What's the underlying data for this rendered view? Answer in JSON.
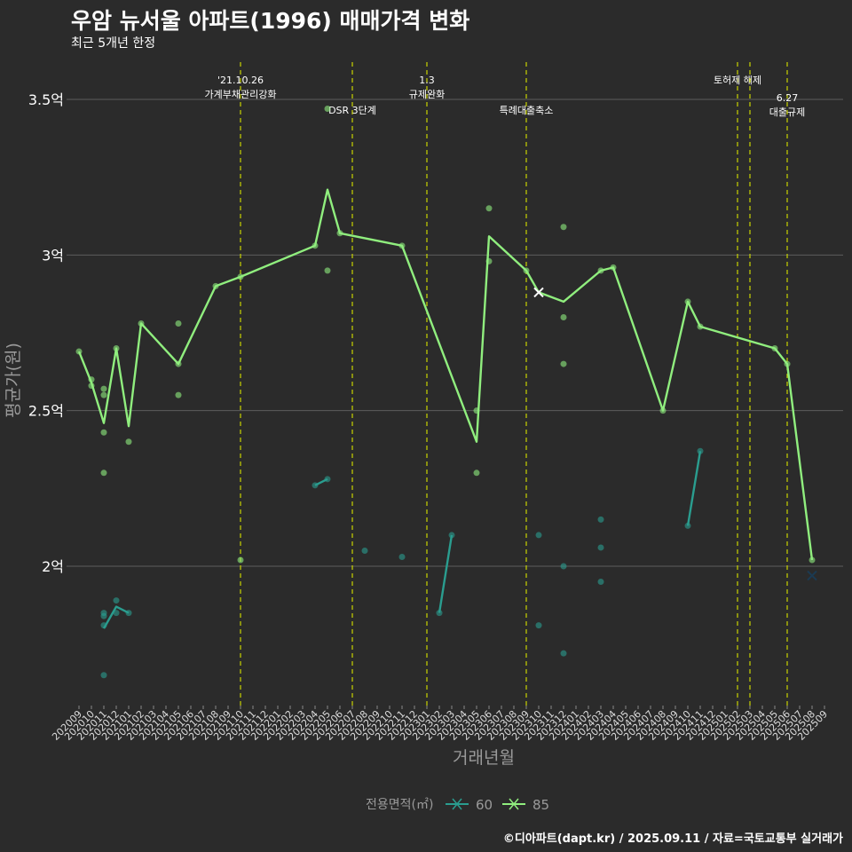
{
  "title": "우암 뉴서울 아파트(1996) 매매가격 변화",
  "subtitle": "최근 5개년 한정",
  "caption": "©디아파트(dapt.kr) / 2025.09.11 / 자료=국토교통부 실거래가",
  "colors": {
    "background": "#2b2b2b",
    "grid": "#5c5c5c",
    "series_60": "#2a9d8f",
    "series_85": "#90ee7e",
    "event_line": "#c8d400",
    "text": "#ffffff",
    "axis_title": "#9a9a9a"
  },
  "chart_data": {
    "type": "line",
    "xlabel": "거래년월",
    "ylabel": "평균가(원)",
    "ylim": [
      1.55,
      3.6
    ],
    "yticks": [
      2.0,
      2.5,
      3.0,
      3.5
    ],
    "ytick_labels": [
      "2억",
      "2.5억",
      "3억",
      "3.5억"
    ],
    "grid": true,
    "legend_title": "전용면적(㎡)",
    "legend_position": "bottom",
    "categories": [
      "202009",
      "202010",
      "202011",
      "202012",
      "202101",
      "202102",
      "202103",
      "202104",
      "202105",
      "202106",
      "202107",
      "202108",
      "202109",
      "202110",
      "202111",
      "202112",
      "202201",
      "202202",
      "202203",
      "202204",
      "202205",
      "202206",
      "202207",
      "202208",
      "202209",
      "202210",
      "202211",
      "202212",
      "202301",
      "202302",
      "202303",
      "202304",
      "202305",
      "202306",
      "202307",
      "202308",
      "202309",
      "202310",
      "202311",
      "202312",
      "202401",
      "202402",
      "202403",
      "202404",
      "202405",
      "202406",
      "202407",
      "202408",
      "202409",
      "202410",
      "202411",
      "202412",
      "202501",
      "202502",
      "202503",
      "202504",
      "202505",
      "202506",
      "202507",
      "202508",
      "202509"
    ],
    "series": [
      {
        "name": "60",
        "line": [
          {
            "x": "202011",
            "y": 1.8
          },
          {
            "x": "202012",
            "y": 1.87
          },
          {
            "x": "202101",
            "y": 1.85
          },
          {
            "x": "202204",
            "y": 2.26
          },
          {
            "x": "202205",
            "y": 2.28
          },
          {
            "x": "202302",
            "y": 1.85
          },
          {
            "x": "202303",
            "y": 2.1
          },
          {
            "x": "202410",
            "y": 2.13
          },
          {
            "x": "202411",
            "y": 2.37
          }
        ],
        "points": [
          {
            "x": "202011",
            "y": 1.84
          },
          {
            "x": "202011",
            "y": 1.85
          },
          {
            "x": "202011",
            "y": 1.65
          },
          {
            "x": "202011",
            "y": 1.81
          },
          {
            "x": "202012",
            "y": 1.89
          },
          {
            "x": "202012",
            "y": 1.85
          },
          {
            "x": "202101",
            "y": 1.85
          },
          {
            "x": "202204",
            "y": 2.26
          },
          {
            "x": "202205",
            "y": 2.28
          },
          {
            "x": "202208",
            "y": 2.05
          },
          {
            "x": "202211",
            "y": 2.03
          },
          {
            "x": "202302",
            "y": 1.85
          },
          {
            "x": "202303",
            "y": 2.1
          },
          {
            "x": "202310",
            "y": 2.1
          },
          {
            "x": "202310",
            "y": 1.81
          },
          {
            "x": "202312",
            "y": 2.0
          },
          {
            "x": "202312",
            "y": 1.72
          },
          {
            "x": "202403",
            "y": 2.15
          },
          {
            "x": "202403",
            "y": 2.06
          },
          {
            "x": "202403",
            "y": 1.95
          },
          {
            "x": "202410",
            "y": 2.13
          },
          {
            "x": "202411",
            "y": 2.37
          }
        ],
        "cross_marks": [
          {
            "x": "202508",
            "y": 1.97
          }
        ]
      },
      {
        "name": "85",
        "line": [
          {
            "x": "202009",
            "y": 2.69
          },
          {
            "x": "202010",
            "y": 2.59
          },
          {
            "x": "202011",
            "y": 2.46
          },
          {
            "x": "202012",
            "y": 2.7
          },
          {
            "x": "202101",
            "y": 2.45
          },
          {
            "x": "202102",
            "y": 2.78
          },
          {
            "x": "202105",
            "y": 2.65
          },
          {
            "x": "202108",
            "y": 2.9
          },
          {
            "x": "202110",
            "y": 2.93
          },
          {
            "x": "202204",
            "y": 3.03
          },
          {
            "x": "202205",
            "y": 3.21
          },
          {
            "x": "202206",
            "y": 3.07
          },
          {
            "x": "202211",
            "y": 3.03
          },
          {
            "x": "202305",
            "y": 2.4
          },
          {
            "x": "202306",
            "y": 3.06
          },
          {
            "x": "202309",
            "y": 2.95
          },
          {
            "x": "202310",
            "y": 2.88
          },
          {
            "x": "202312",
            "y": 2.85
          },
          {
            "x": "202403",
            "y": 2.95
          },
          {
            "x": "202404",
            "y": 2.96
          },
          {
            "x": "202408",
            "y": 2.5
          },
          {
            "x": "202410",
            "y": 2.85
          },
          {
            "x": "202411",
            "y": 2.77
          },
          {
            "x": "202505",
            "y": 2.7
          },
          {
            "x": "202506",
            "y": 2.65
          },
          {
            "x": "202508",
            "y": 2.02
          }
        ],
        "points": [
          {
            "x": "202009",
            "y": 2.69
          },
          {
            "x": "202010",
            "y": 2.6
          },
          {
            "x": "202010",
            "y": 2.58
          },
          {
            "x": "202011",
            "y": 2.57
          },
          {
            "x": "202011",
            "y": 2.55
          },
          {
            "x": "202011",
            "y": 2.43
          },
          {
            "x": "202011",
            "y": 2.3
          },
          {
            "x": "202012",
            "y": 2.7
          },
          {
            "x": "202101",
            "y": 2.4
          },
          {
            "x": "202102",
            "y": 2.78
          },
          {
            "x": "202105",
            "y": 2.78
          },
          {
            "x": "202105",
            "y": 2.65
          },
          {
            "x": "202105",
            "y": 2.55
          },
          {
            "x": "202108",
            "y": 2.9
          },
          {
            "x": "202110",
            "y": 2.02
          },
          {
            "x": "202110",
            "y": 2.93
          },
          {
            "x": "202204",
            "y": 3.03
          },
          {
            "x": "202205",
            "y": 3.47
          },
          {
            "x": "202205",
            "y": 2.95
          },
          {
            "x": "202206",
            "y": 3.07
          },
          {
            "x": "202211",
            "y": 3.03
          },
          {
            "x": "202305",
            "y": 2.5
          },
          {
            "x": "202305",
            "y": 2.3
          },
          {
            "x": "202306",
            "y": 3.15
          },
          {
            "x": "202306",
            "y": 2.98
          },
          {
            "x": "202309",
            "y": 2.95
          },
          {
            "x": "202312",
            "y": 3.09
          },
          {
            "x": "202312",
            "y": 2.8
          },
          {
            "x": "202312",
            "y": 2.65
          },
          {
            "x": "202403",
            "y": 2.95
          },
          {
            "x": "202404",
            "y": 2.96
          },
          {
            "x": "202408",
            "y": 2.5
          },
          {
            "x": "202410",
            "y": 2.85
          },
          {
            "x": "202411",
            "y": 2.77
          },
          {
            "x": "202505",
            "y": 2.7
          },
          {
            "x": "202506",
            "y": 2.65
          },
          {
            "x": "202508",
            "y": 2.02
          }
        ],
        "cross_marks": [
          {
            "x": "202310",
            "y": 2.88
          }
        ]
      }
    ],
    "annotations": [
      {
        "x": "202110",
        "lines": [
          "'21.10.26",
          "가계부채관리강화"
        ],
        "level": 0
      },
      {
        "x": "202207",
        "lines": [
          "DSR 3단계"
        ],
        "level": 1
      },
      {
        "x": "202301",
        "lines": [
          "1.3",
          "규제완화"
        ],
        "level": 0
      },
      {
        "x": "202309",
        "lines": [
          "특례대출축소"
        ],
        "level": 1
      },
      {
        "x": "202502",
        "lines": [
          "토허제 해제"
        ],
        "level": 0
      },
      {
        "x": "202503",
        "lines": [],
        "level": 0
      },
      {
        "x": "202506",
        "lines": [
          "6.27",
          "대출규제"
        ],
        "level": 1
      }
    ]
  }
}
